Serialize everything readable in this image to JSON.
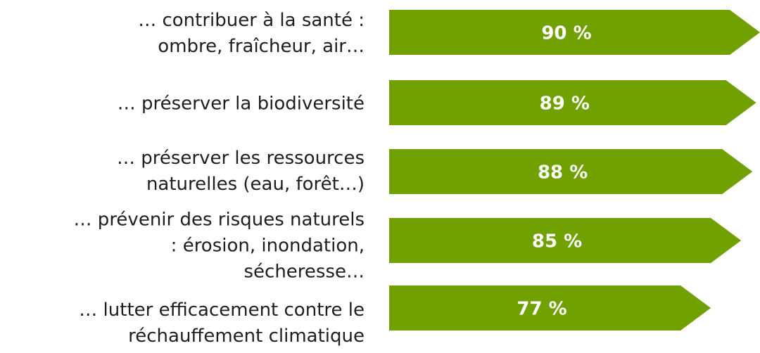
{
  "chart_data": {
    "type": "bar",
    "categories": [
      "… contribuer à la santé :\nombre, fraîcheur, air…",
      "… préserver la biodiversité",
      "… préserver les ressources\nnaturelles (eau, forêt…)",
      "… prévenir des risques naturels\n: érosion, inondation,\nsécheresse…",
      "… lutter efficacement contre le\nréchauffement climatique"
    ],
    "values": [
      90,
      89,
      88,
      85,
      77
    ],
    "value_labels": [
      "90 %",
      "89 %",
      "88 %",
      "85 %",
      "77 %"
    ],
    "color": "#70a100",
    "xlim": [
      0,
      100
    ]
  }
}
